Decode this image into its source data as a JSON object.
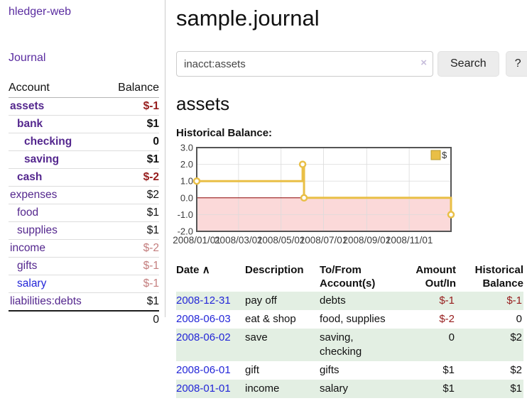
{
  "colors": {
    "link_purple": "#54278e",
    "link_blue": "#2326d8",
    "negative_strong": "#961c1c",
    "negative_faded": "#c47e7e",
    "stripe_green": "#e3efe3",
    "chart_line_gold": "#e9bf46",
    "chart_negative_fill": "#fbd9d9",
    "chart_zero_line": "#8b0000"
  },
  "sidebar": {
    "brand": "hledger-web",
    "nav_journal": "Journal",
    "table": {
      "account_header": "Account",
      "balance_header": "Balance",
      "rows": [
        {
          "account": "assets",
          "indent": 0,
          "bold": true,
          "link_color": "purple",
          "balance": "$-1",
          "balance_style": "neg"
        },
        {
          "account": "bank",
          "indent": 1,
          "bold": true,
          "link_color": "purple",
          "balance": "$1",
          "balance_style": "norm"
        },
        {
          "account": "checking",
          "indent": 2,
          "bold": true,
          "link_color": "purple",
          "balance": "0",
          "balance_style": "norm"
        },
        {
          "account": "saving",
          "indent": 2,
          "bold": true,
          "link_color": "purple",
          "balance": "$1",
          "balance_style": "norm"
        },
        {
          "account": "cash",
          "indent": 1,
          "bold": true,
          "link_color": "purple",
          "balance": "$-2",
          "balance_style": "neg"
        },
        {
          "account": "expenses",
          "indent": 0,
          "bold": false,
          "link_color": "purple",
          "balance": "$2",
          "balance_style": "norm"
        },
        {
          "account": "food",
          "indent": 1,
          "bold": false,
          "link_color": "purple",
          "balance": "$1",
          "balance_style": "norm"
        },
        {
          "account": "supplies",
          "indent": 1,
          "bold": false,
          "link_color": "purple",
          "balance": "$1",
          "balance_style": "norm"
        },
        {
          "account": "income",
          "indent": 0,
          "bold": false,
          "link_color": "purple",
          "balance": "$-2",
          "balance_style": "negfaded"
        },
        {
          "account": "gifts",
          "indent": 1,
          "bold": false,
          "link_color": "purple",
          "balance": "$-1",
          "balance_style": "negfaded"
        },
        {
          "account": "salary",
          "indent": 1,
          "bold": false,
          "link_color": "blue",
          "balance": "$-1",
          "balance_style": "negfaded"
        },
        {
          "account": "liabilities:debts",
          "indent": 0,
          "bold": false,
          "link_color": "purple",
          "balance": "$1",
          "balance_style": "norm"
        }
      ],
      "total": "0"
    }
  },
  "header": {
    "title": "sample.journal"
  },
  "search": {
    "value": "inacct:assets",
    "clear_icon": "×",
    "button": "Search",
    "help_button": "?"
  },
  "account_page": {
    "heading": "assets",
    "chart_label": "Historical Balance:"
  },
  "chart_data": {
    "type": "line",
    "title": "Historical Balance",
    "step": true,
    "series": [
      {
        "name": "$",
        "color": "#e9bf46",
        "points": [
          [
            "2008-01-01",
            1
          ],
          [
            "2008-06-01",
            2
          ],
          [
            "2008-06-03",
            0
          ],
          [
            "2008-12-31",
            -1
          ]
        ]
      }
    ],
    "ylim": [
      -2,
      3
    ],
    "yticks": [
      {
        "label": "3.0",
        "value": 3
      },
      {
        "label": "2.0",
        "value": 2
      },
      {
        "label": "1.0",
        "value": 1
      },
      {
        "label": "0.0",
        "value": 0
      },
      {
        "label": "-1.0",
        "value": -1
      },
      {
        "label": "-2.0",
        "value": -2
      }
    ],
    "xticks": [
      {
        "label": "2008/01/01",
        "date": "2008-01-01"
      },
      {
        "label": "2008/03/01",
        "date": "2008-03-01"
      },
      {
        "label": "2008/05/01",
        "date": "2008-05-01"
      },
      {
        "label": "2008/07/01",
        "date": "2008-07-01"
      },
      {
        "label": "2008/09/01",
        "date": "2008-09-01"
      },
      {
        "label": "2008/11/01",
        "date": "2008-11-01"
      }
    ],
    "xrange": [
      "2008-01-01",
      "2008-12-31"
    ],
    "grid": true,
    "legend_position": "top-right",
    "legend": [
      "$"
    ],
    "negative_region_fill": "#fbd9d9",
    "zero_line_color": "#8b0000"
  },
  "register": {
    "headers": {
      "date": "Date",
      "sort_icon": "∧",
      "description": "Description",
      "tofrom_line1": "To/From",
      "tofrom_line2": "Account(s)",
      "amount_line1": "Amount",
      "amount_line2": "Out/In",
      "balance_line1": "Historical",
      "balance_line2": "Balance"
    },
    "rows": [
      {
        "date": "2008-12-31",
        "description": "pay off",
        "accounts": "debts",
        "amount": "$-1",
        "amount_neg": true,
        "balance": "$-1",
        "balance_neg": true
      },
      {
        "date": "2008-06-03",
        "description": "eat & shop",
        "accounts": "food, supplies",
        "amount": "$-2",
        "amount_neg": true,
        "balance": "0",
        "balance_neg": false
      },
      {
        "date": "2008-06-02",
        "description": "save",
        "accounts": "saving, checking",
        "amount": "0",
        "amount_neg": false,
        "balance": "$2",
        "balance_neg": false
      },
      {
        "date": "2008-06-01",
        "description": "gift",
        "accounts": "gifts",
        "amount": "$1",
        "amount_neg": false,
        "balance": "$2",
        "balance_neg": false
      },
      {
        "date": "2008-01-01",
        "description": "income",
        "accounts": "salary",
        "amount": "$1",
        "amount_neg": false,
        "balance": "$1",
        "balance_neg": false
      }
    ]
  }
}
